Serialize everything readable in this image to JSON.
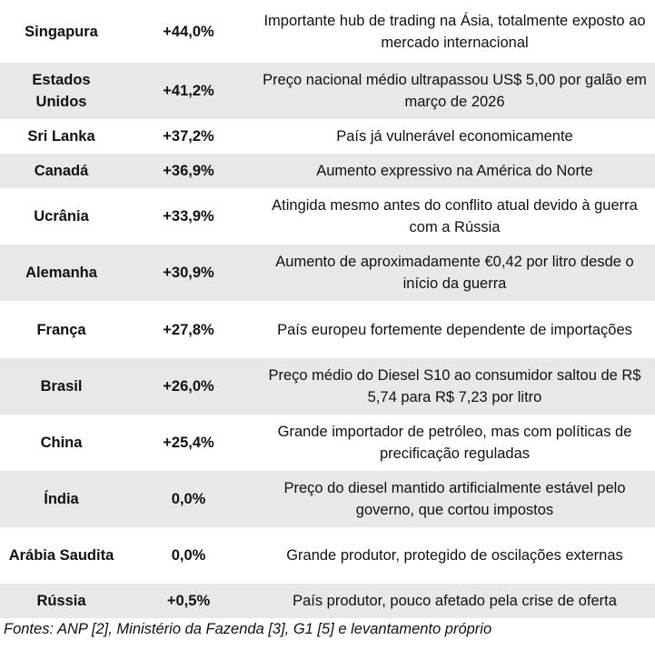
{
  "table": {
    "rows": [
      {
        "country": "Singapura",
        "change": "+44,0%",
        "note": "Importante hub de trading na Ásia, totalmente exposto ao mercado internacional"
      },
      {
        "country": "Estados Unidos",
        "change": "+41,2%",
        "note": "Preço nacional médio ultrapassou US$ 5,00 por galão em março de 2026"
      },
      {
        "country": "Sri Lanka",
        "change": "+37,2%",
        "note": "País já vulnerável economicamente"
      },
      {
        "country": "Canadá",
        "change": "+36,9%",
        "note": "Aumento expressivo na América do Norte"
      },
      {
        "country": "Ucrânia",
        "change": "+33,9%",
        "note": "Atingida mesmo antes do conflito atual devido à guerra com a Rússia"
      },
      {
        "country": "Alemanha",
        "change": "+30,9%",
        "note": "Aumento de aproximadamente €0,42 por litro desde o início da guerra"
      },
      {
        "country": "França",
        "change": "+27,8%",
        "note": "País europeu fortemente dependente de importações"
      },
      {
        "country": "Brasil",
        "change": "+26,0%",
        "note": "Preço médio do Diesel S10 ao consumidor saltou de R$ 5,74 para R$ 7,23 por litro"
      },
      {
        "country": "China",
        "change": "+25,4%",
        "note": "Grande importador de petróleo, mas com políticas de precificação reguladas"
      },
      {
        "country": "Índia",
        "change": "0,0%",
        "note": "Preço do diesel mantido artificialmente estável pelo governo, que cortou impostos"
      },
      {
        "country": "Arábia Saudita",
        "change": "0,0%",
        "note": "Grande produtor, protegido de oscilações externas"
      },
      {
        "country": "Rússia",
        "change": "+0,5%",
        "note": "País produtor, pouco afetado pela crise de oferta"
      }
    ]
  },
  "source": "Fontes: ANP [2], Ministério da Fazenda [3], G1 [5] e levantamento próprio"
}
